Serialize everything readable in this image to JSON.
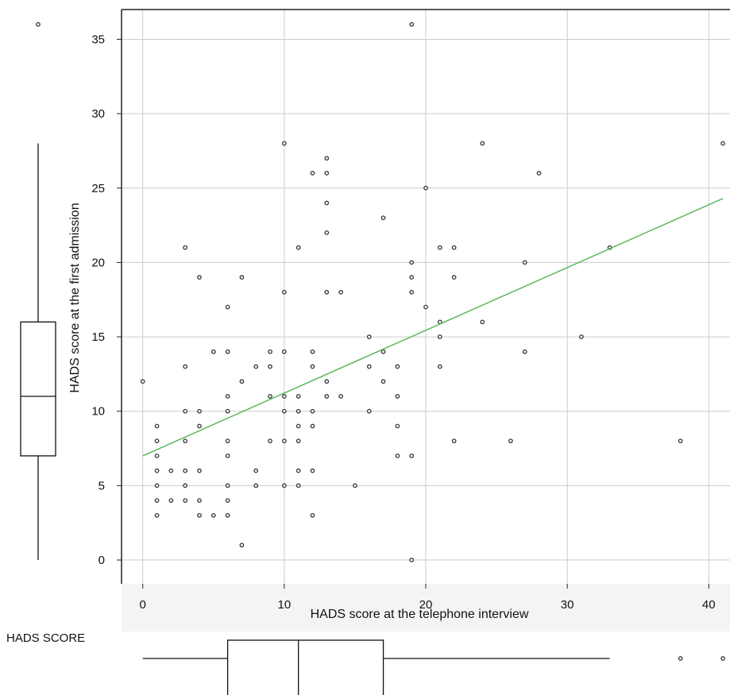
{
  "chart_data": {
    "type": "scatter",
    "title": "",
    "xlabel": "HADS score at the telephone interview",
    "ylabel": "HADS score at the first admission",
    "xlim": [
      -1.5,
      41.5
    ],
    "ylim": [
      -1.6,
      37
    ],
    "xticks": [
      0,
      10,
      20,
      30,
      40
    ],
    "yticks": [
      0,
      5,
      10,
      15,
      20,
      25,
      30,
      35
    ],
    "grid": true,
    "point_color": "#333333",
    "trend_color": "#5cb85c",
    "trend_line": {
      "x": [
        0,
        41
      ],
      "y": [
        7.0,
        24.3
      ]
    },
    "points": [
      [
        0,
        12
      ],
      [
        1,
        3
      ],
      [
        1,
        4
      ],
      [
        1,
        5
      ],
      [
        1,
        6
      ],
      [
        1,
        7
      ],
      [
        1,
        8
      ],
      [
        1,
        9
      ],
      [
        2,
        4
      ],
      [
        2,
        6
      ],
      [
        3,
        4
      ],
      [
        3,
        5
      ],
      [
        3,
        6
      ],
      [
        3,
        8
      ],
      [
        3,
        10
      ],
      [
        3,
        13
      ],
      [
        3,
        21
      ],
      [
        4,
        3
      ],
      [
        4,
        4
      ],
      [
        4,
        6
      ],
      [
        4,
        9
      ],
      [
        4,
        10
      ],
      [
        4,
        19
      ],
      [
        5,
        3
      ],
      [
        5,
        14
      ],
      [
        6,
        3
      ],
      [
        6,
        4
      ],
      [
        6,
        5
      ],
      [
        6,
        7
      ],
      [
        6,
        8
      ],
      [
        6,
        10
      ],
      [
        6,
        11
      ],
      [
        6,
        14
      ],
      [
        6,
        17
      ],
      [
        7,
        1
      ],
      [
        7,
        12
      ],
      [
        7,
        19
      ],
      [
        8,
        5
      ],
      [
        8,
        6
      ],
      [
        8,
        13
      ],
      [
        9,
        8
      ],
      [
        9,
        11
      ],
      [
        9,
        13
      ],
      [
        9,
        14
      ],
      [
        10,
        5
      ],
      [
        10,
        8
      ],
      [
        10,
        10
      ],
      [
        10,
        11
      ],
      [
        10,
        14
      ],
      [
        10,
        18
      ],
      [
        10,
        28
      ],
      [
        11,
        5
      ],
      [
        11,
        6
      ],
      [
        11,
        8
      ],
      [
        11,
        9
      ],
      [
        11,
        10
      ],
      [
        11,
        11
      ],
      [
        11,
        21
      ],
      [
        12,
        3
      ],
      [
        12,
        6
      ],
      [
        12,
        9
      ],
      [
        12,
        10
      ],
      [
        12,
        13
      ],
      [
        12,
        14
      ],
      [
        12,
        26
      ],
      [
        13,
        11
      ],
      [
        13,
        12
      ],
      [
        13,
        18
      ],
      [
        13,
        22
      ],
      [
        13,
        24
      ],
      [
        13,
        26
      ],
      [
        13,
        27
      ],
      [
        14,
        11
      ],
      [
        14,
        18
      ],
      [
        15,
        5
      ],
      [
        16,
        10
      ],
      [
        16,
        13
      ],
      [
        16,
        15
      ],
      [
        17,
        12
      ],
      [
        17,
        14
      ],
      [
        17,
        23
      ],
      [
        18,
        7
      ],
      [
        18,
        9
      ],
      [
        18,
        11
      ],
      [
        18,
        13
      ],
      [
        19,
        0
      ],
      [
        19,
        7
      ],
      [
        19,
        18
      ],
      [
        19,
        19
      ],
      [
        19,
        20
      ],
      [
        19,
        36
      ],
      [
        20,
        17
      ],
      [
        20,
        25
      ],
      [
        21,
        13
      ],
      [
        21,
        15
      ],
      [
        21,
        16
      ],
      [
        21,
        21
      ],
      [
        22,
        8
      ],
      [
        22,
        19
      ],
      [
        22,
        21
      ],
      [
        24,
        16
      ],
      [
        24,
        28
      ],
      [
        26,
        8
      ],
      [
        27,
        14
      ],
      [
        27,
        20
      ],
      [
        28,
        26
      ],
      [
        31,
        15
      ],
      [
        33,
        21
      ],
      [
        38,
        8
      ],
      [
        41,
        28
      ]
    ],
    "boxplot_y": {
      "min": 0,
      "q1": 7,
      "median": 11,
      "q3": 16,
      "max": 28,
      "outliers": [
        36
      ]
    },
    "boxplot_x": {
      "min": 0,
      "q1": 6,
      "median": 11,
      "q3": 17,
      "max": 33,
      "outliers": [
        38,
        41
      ]
    },
    "boxplot_label": "HADS SCORE"
  }
}
